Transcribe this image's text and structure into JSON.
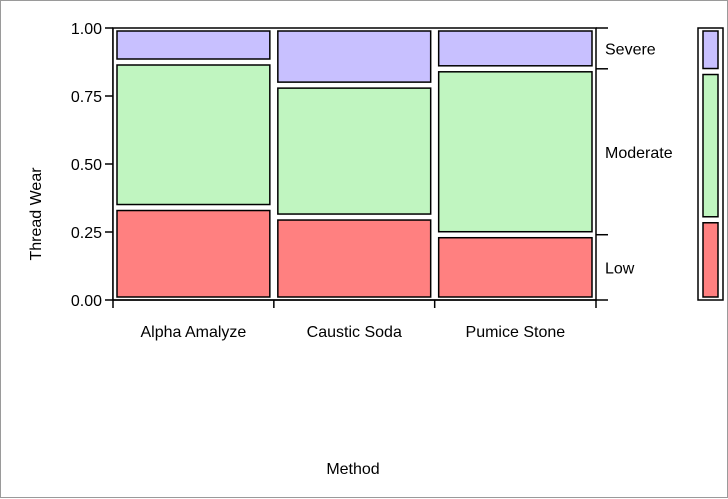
{
  "chart_data": {
    "type": "mosaic",
    "xlabel": "Method",
    "ylabel": "Thread Wear",
    "categories": [
      "Alpha Amalyze",
      "Caustic Soda",
      "Pumice Stone"
    ],
    "category_widths": [
      0.333,
      0.333,
      0.334
    ],
    "levels": [
      "Low",
      "Moderate",
      "Severe"
    ],
    "level_colors": [
      "#ff8080",
      "#c0f5c0",
      "#c8c0ff"
    ],
    "proportions": [
      [
        0.34,
        0.535,
        0.125
      ],
      [
        0.305,
        0.485,
        0.21
      ],
      [
        0.24,
        0.61,
        0.15
      ]
    ],
    "overall": [
      0.295,
      0.545,
      0.16
    ],
    "ylim": [
      0,
      1
    ],
    "yticks": [
      "0.00",
      "0.25",
      "0.50",
      "0.75",
      "1.00"
    ]
  }
}
